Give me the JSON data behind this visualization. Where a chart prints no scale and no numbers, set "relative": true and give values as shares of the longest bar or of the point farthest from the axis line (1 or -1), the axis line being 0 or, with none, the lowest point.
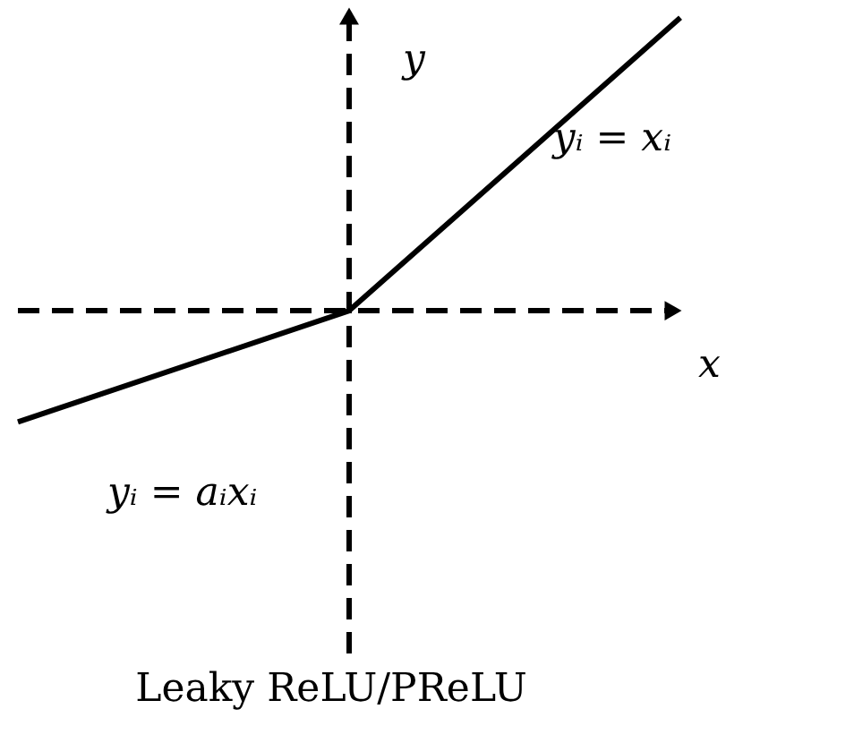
{
  "chart_data": {
    "type": "line",
    "title": "Leaky ReLU/PReLU",
    "xlabel": "x",
    "ylabel": "y",
    "categories": [
      null,
      null,
      null
    ],
    "values": [
      -0.38,
      0,
      1
    ],
    "color": "#000000",
    "relative": true,
    "line_style": "solid",
    "annotations": [
      "yᵢ = xᵢ",
      "yᵢ = aᵢxᵢ"
    ]
  }
}
